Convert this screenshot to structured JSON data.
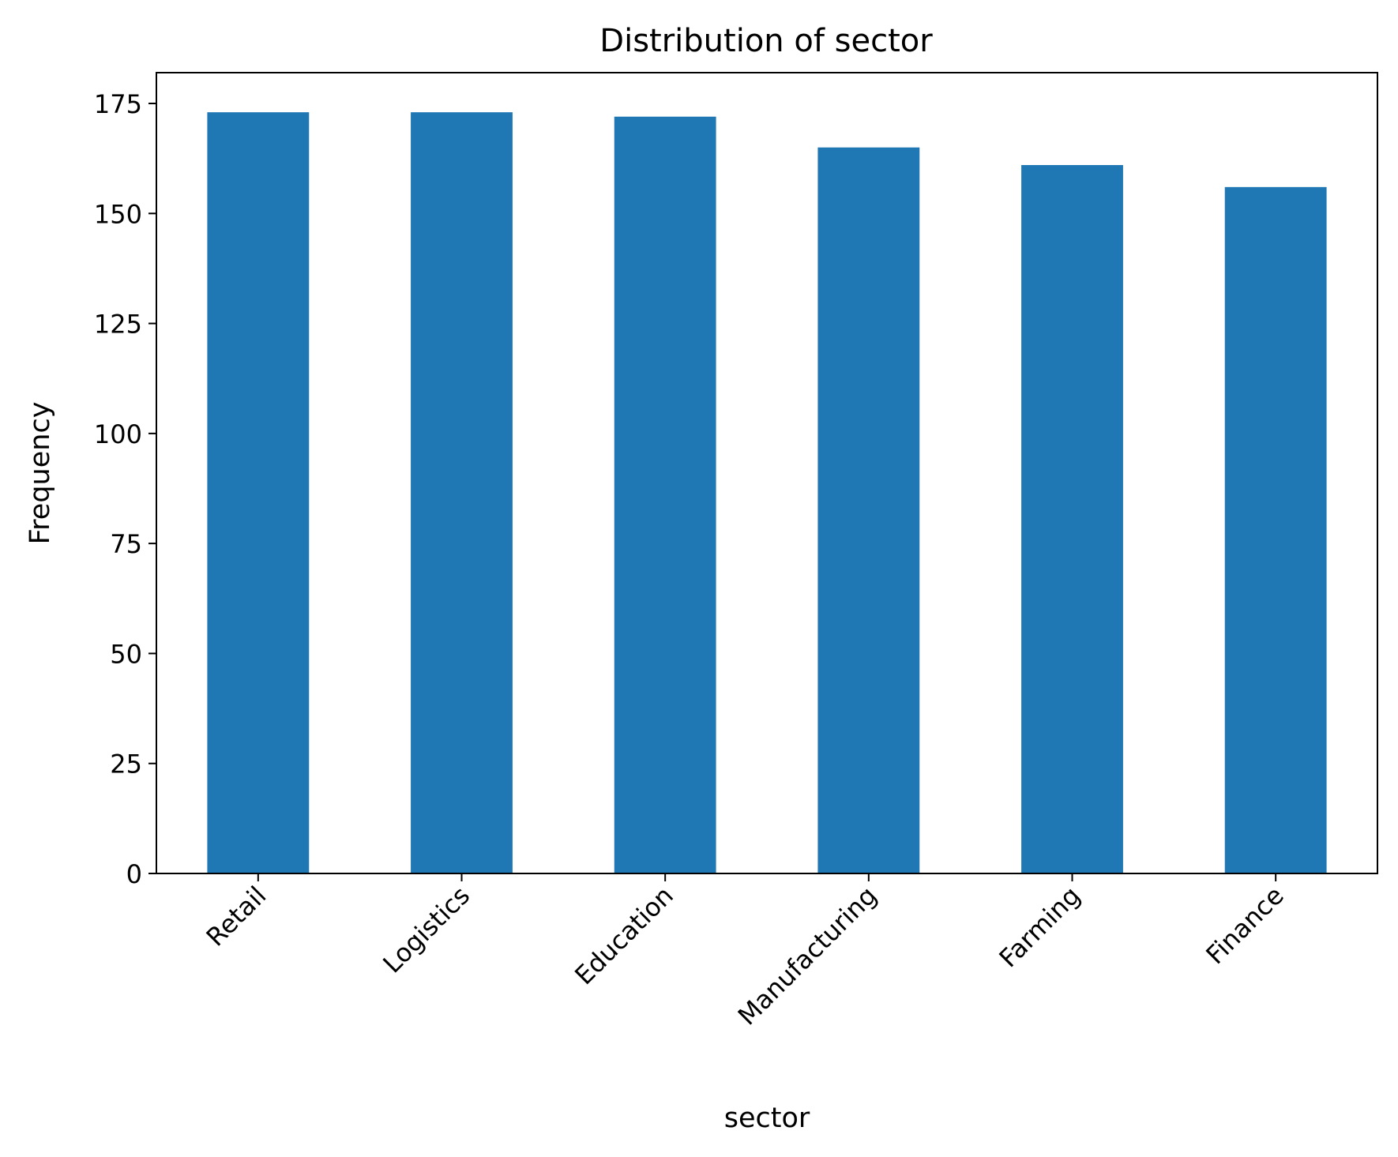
{
  "chart_data": {
    "type": "bar",
    "title": "Distribution of sector",
    "xlabel": "sector",
    "ylabel": "Frequency",
    "categories": [
      "Retail",
      "Logistics",
      "Education",
      "Manufacturing",
      "Farming",
      "Finance"
    ],
    "values": [
      173,
      173,
      172,
      165,
      161,
      156
    ],
    "ylim": [
      0,
      182
    ],
    "yticks": [
      0,
      25,
      50,
      75,
      100,
      125,
      150,
      175
    ],
    "ytick_labels": [
      "0",
      "25",
      "50",
      "75",
      "100",
      "125",
      "150",
      "175"
    ],
    "grid": false,
    "legend": "none",
    "colors": {
      "bar": "#1f77b4",
      "axes": "#000000",
      "background": "#ffffff"
    }
  }
}
